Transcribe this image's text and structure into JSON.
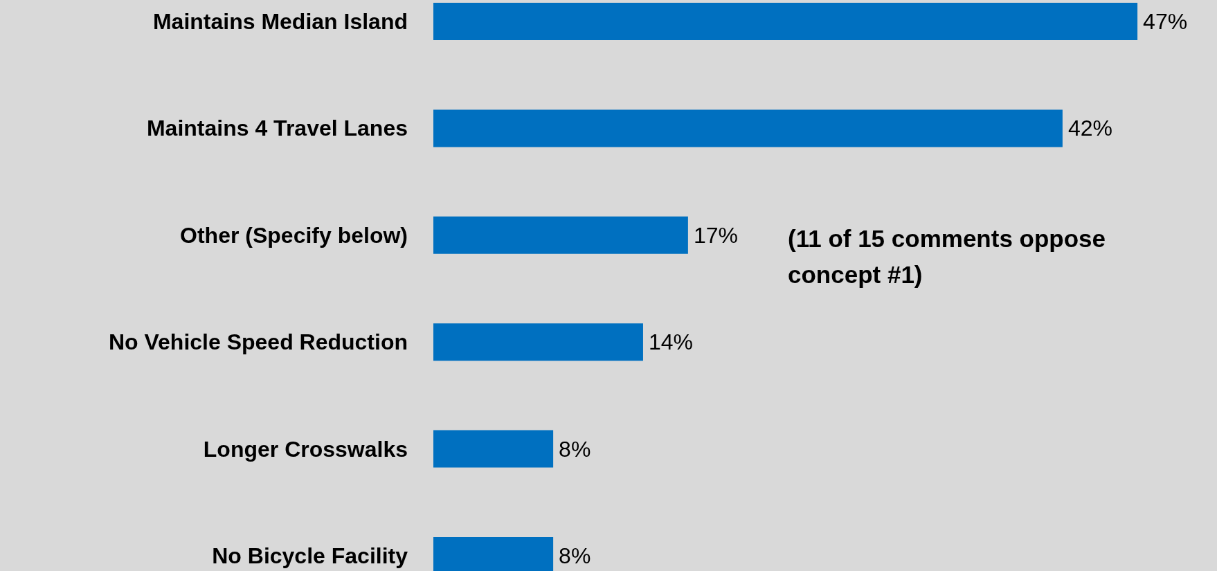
{
  "chart_data": {
    "type": "bar",
    "orientation": "horizontal",
    "categories": [
      "Maintains Median Island",
      "Maintains 4 Travel Lanes",
      "Other (Specify below)",
      "No Vehicle Speed Reduction",
      "Longer Crosswalks",
      "No Bicycle Facility"
    ],
    "values": [
      47,
      42,
      17,
      14,
      8,
      8
    ],
    "value_labels": [
      "47%",
      "42%",
      "17%",
      "14%",
      "8%",
      "8%"
    ],
    "color": "#0070c0",
    "annotations": [
      "(11 of 15 comments oppose concept #1)"
    ]
  }
}
